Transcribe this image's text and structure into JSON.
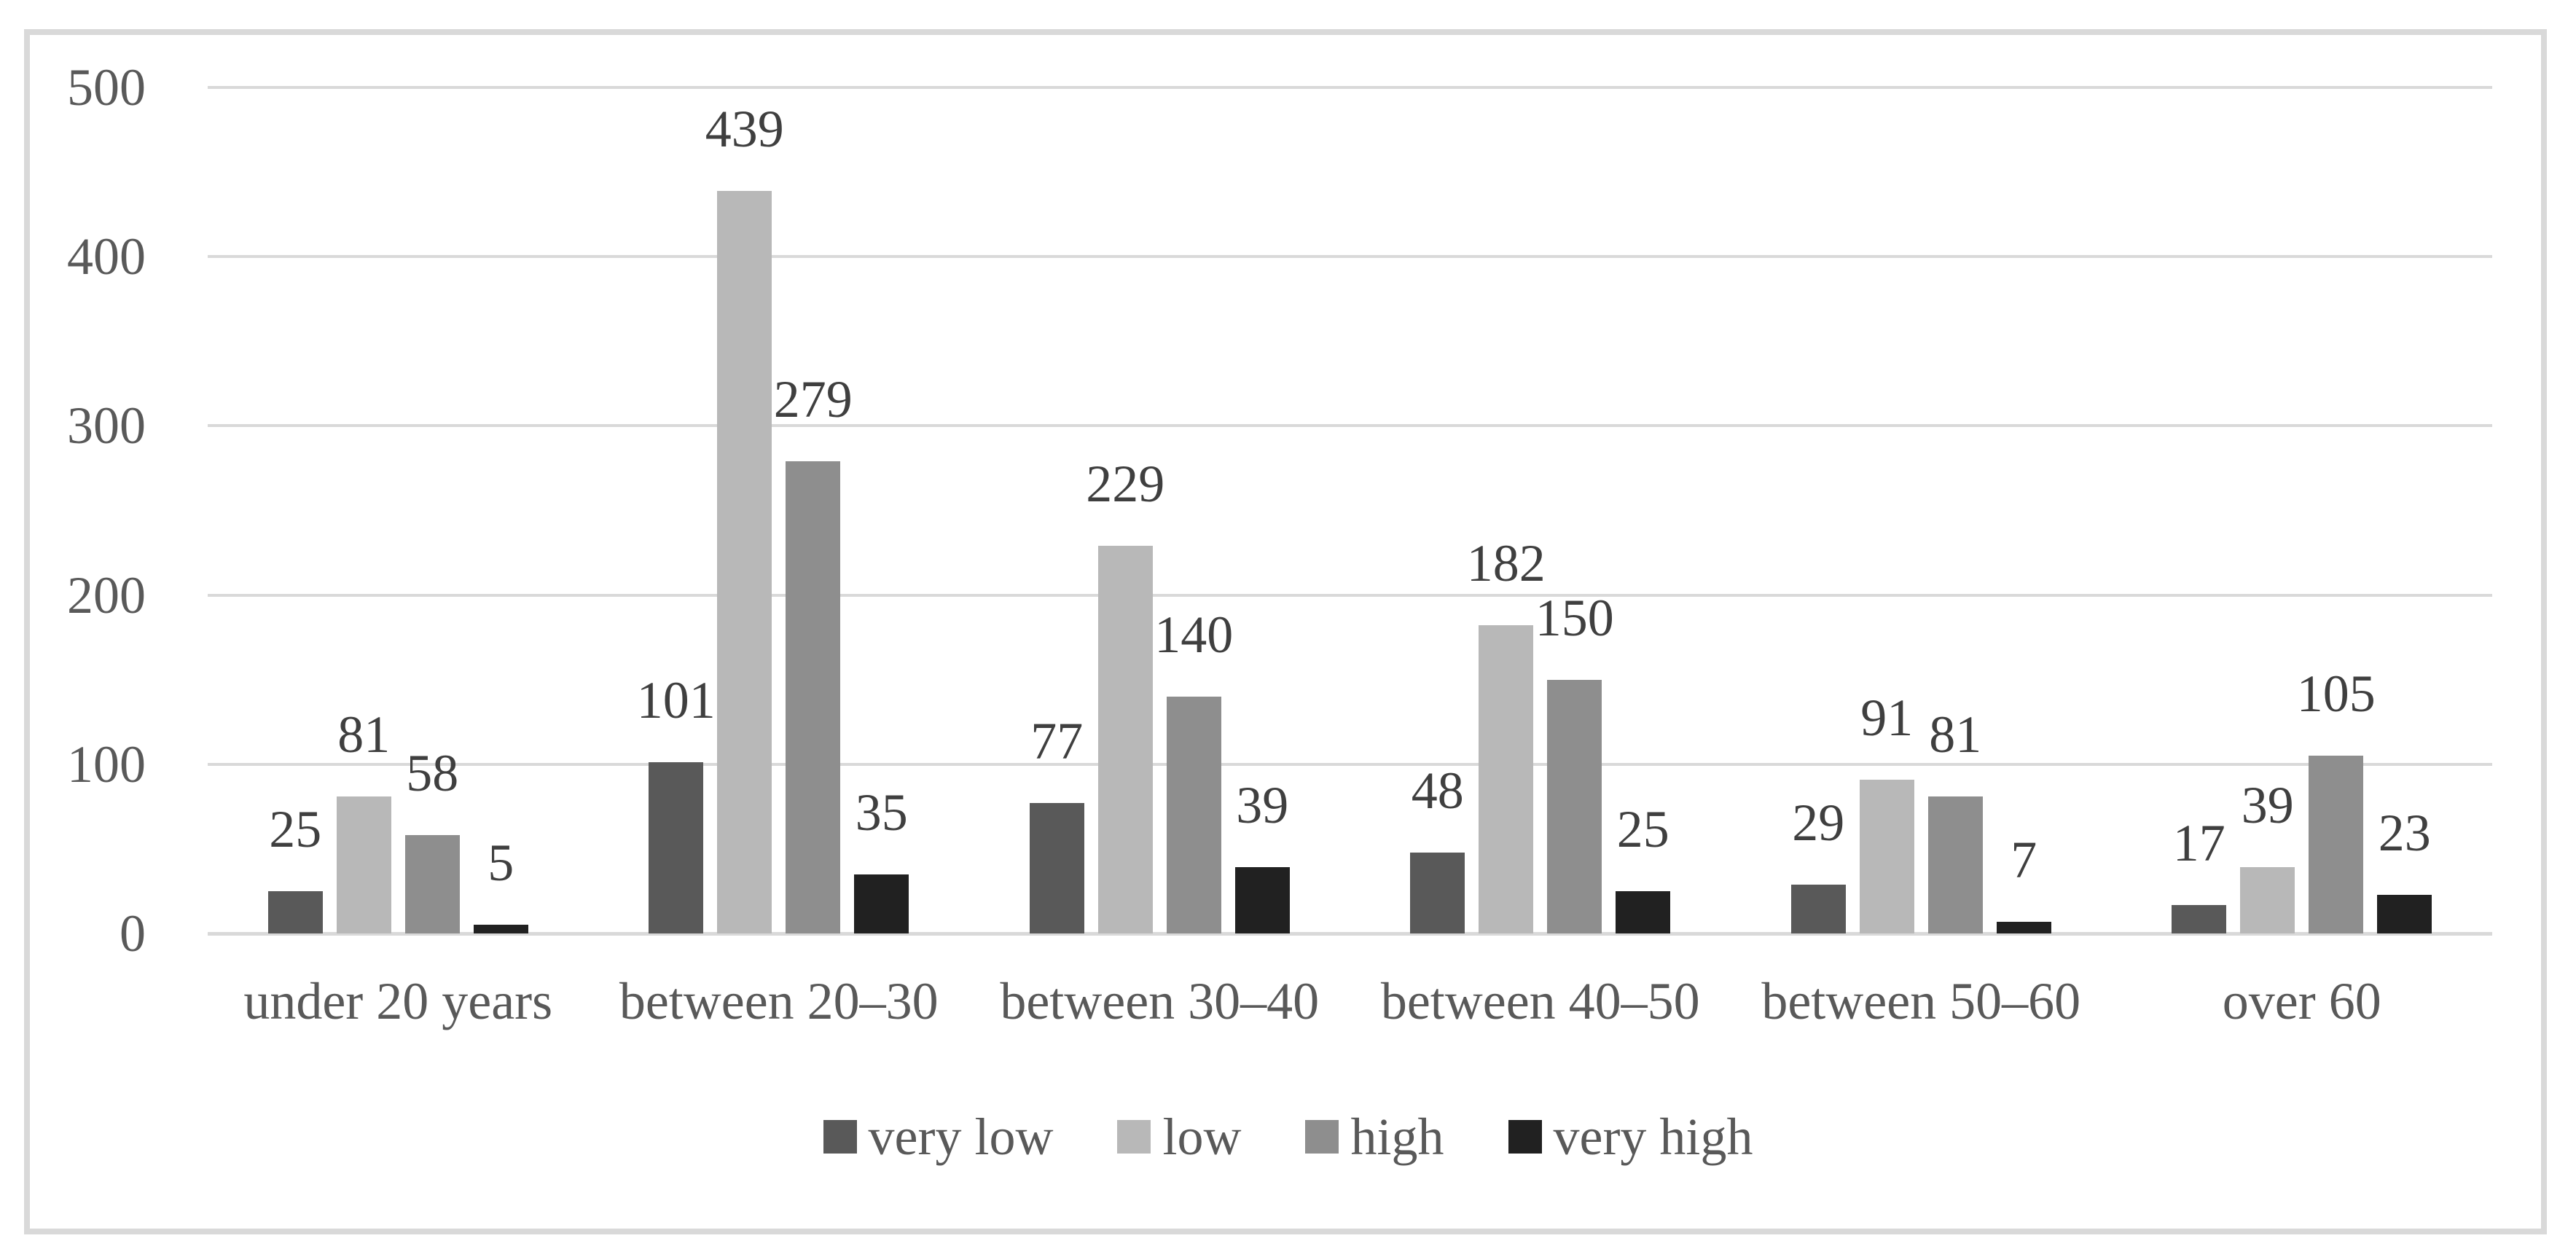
{
  "figure": {
    "background": "#FFFFFF",
    "border_color": "#D9D9D9",
    "axis_text_color": "#595959",
    "data_label_color": "#3F3F3F",
    "gridline_color": "#D9D9D9"
  },
  "chart_data": {
    "type": "bar",
    "title": "",
    "xlabel": "",
    "ylabel": "",
    "categories": [
      "under 20 years",
      "between 20–30",
      "between 30–40",
      "between 40–50",
      "between 50–60",
      "over 60"
    ],
    "series": [
      {
        "name": "very low",
        "color": "#595959",
        "values": [
          25,
          101,
          77,
          48,
          29,
          17
        ]
      },
      {
        "name": "low",
        "color": "#B8B8B8",
        "values": [
          81,
          439,
          229,
          182,
          91,
          39
        ]
      },
      {
        "name": "high",
        "color": "#8E8E8E",
        "values": [
          58,
          279,
          140,
          150,
          81,
          105
        ]
      },
      {
        "name": "very high",
        "color": "#212121",
        "values": [
          5,
          35,
          39,
          25,
          7,
          23
        ]
      }
    ],
    "ylim": [
      0,
      500
    ],
    "yticks": [
      0,
      100,
      200,
      300,
      400,
      500
    ],
    "grid": true,
    "data_labels": true,
    "legend_position": "bottom"
  }
}
